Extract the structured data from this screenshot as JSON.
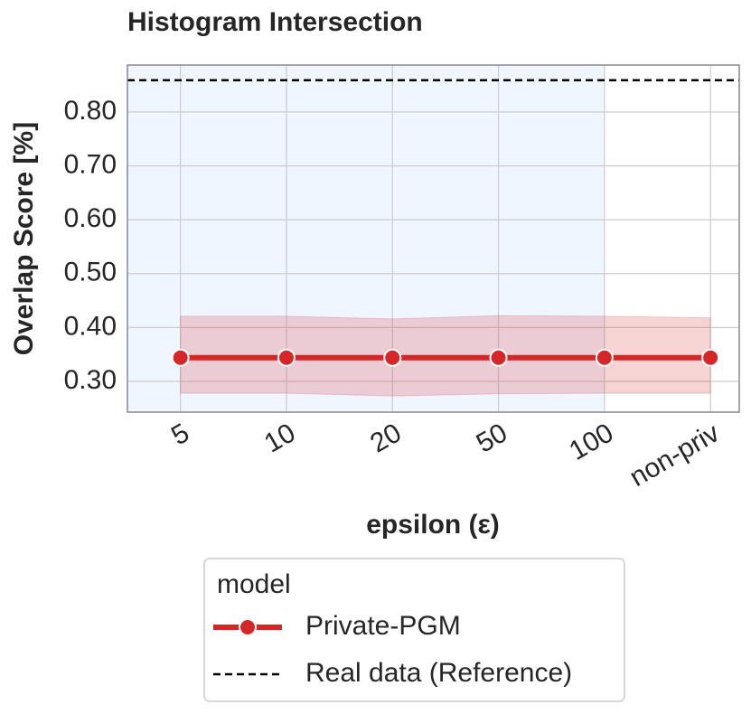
{
  "chart_data": {
    "type": "line",
    "title": "Histogram Intersection",
    "x_label": "epsilon (ε)",
    "y_label": "Overlap Score [%]",
    "categories": [
      "5",
      "10",
      "20",
      "50",
      "100",
      "non-priv"
    ],
    "series": [
      {
        "name": "Private-PGM",
        "color": "#d62728",
        "values": [
          0.344,
          0.344,
          0.344,
          0.344,
          0.344,
          0.344
        ],
        "lower": [
          0.278,
          0.278,
          0.273,
          0.277,
          0.278,
          0.278
        ],
        "upper": [
          0.421,
          0.421,
          0.416,
          0.422,
          0.421,
          0.418
        ]
      }
    ],
    "reference": {
      "name": "Real data (Reference)",
      "value": 0.859,
      "color": "#000000"
    },
    "shade_to": "100",
    "shade_color": "#f0f6ff",
    "ylim": [
      0.243,
      0.887
    ],
    "yticks": [
      {
        "value": 0.3,
        "label": "0.30"
      },
      {
        "value": 0.4,
        "label": "0.40"
      },
      {
        "value": 0.5,
        "label": "0.50"
      },
      {
        "value": 0.6,
        "label": "0.60"
      },
      {
        "value": 0.7,
        "label": "0.70"
      },
      {
        "value": 0.8,
        "label": "0.80"
      }
    ],
    "grid": true,
    "legend_title": "model",
    "legend_position": "below"
  }
}
